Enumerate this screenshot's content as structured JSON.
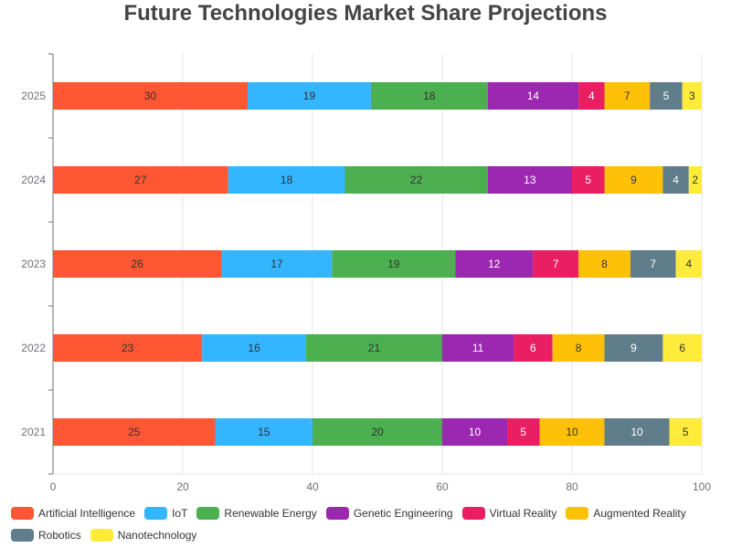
{
  "chart_data": {
    "type": "bar",
    "orientation": "horizontal",
    "stacked": true,
    "title": "Future Technologies Market Share Projections",
    "categories": [
      "2021",
      "2022",
      "2023",
      "2024",
      "2025"
    ],
    "xlim": [
      0,
      100
    ],
    "xticks": [
      "0",
      "20",
      "40",
      "60",
      "80",
      "100"
    ],
    "grid": true,
    "legend_position": "bottom",
    "series": [
      {
        "name": "Artificial Intelligence",
        "color": "#FF5733",
        "label_color": "#333333",
        "values": [
          25,
          23,
          26,
          27,
          30
        ]
      },
      {
        "name": "IoT",
        "color": "#33B5FF",
        "label_color": "#333333",
        "values": [
          15,
          16,
          17,
          18,
          19
        ]
      },
      {
        "name": "Renewable Energy",
        "color": "#4CAF50",
        "label_color": "#333333",
        "values": [
          20,
          21,
          19,
          22,
          18
        ]
      },
      {
        "name": "Genetic Engineering",
        "color": "#9C27B0",
        "label_color": "#ffffff",
        "values": [
          10,
          11,
          12,
          13,
          14
        ]
      },
      {
        "name": "Virtual Reality",
        "color": "#E91E63",
        "label_color": "#ffffff",
        "values": [
          5,
          6,
          7,
          5,
          4
        ]
      },
      {
        "name": "Augmented Reality",
        "color": "#FFC107",
        "label_color": "#333333",
        "values": [
          10,
          8,
          8,
          9,
          7
        ]
      },
      {
        "name": "Robotics",
        "color": "#607D8B",
        "label_color": "#ffffff",
        "values": [
          10,
          9,
          7,
          4,
          5
        ]
      },
      {
        "name": "Nanotechnology",
        "color": "#FFEB3B",
        "label_color": "#333333",
        "values": [
          5,
          6,
          4,
          2,
          3
        ]
      }
    ]
  }
}
